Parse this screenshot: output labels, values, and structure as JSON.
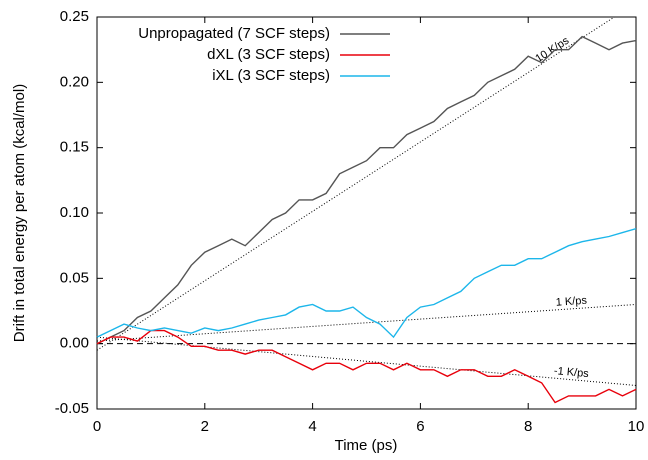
{
  "chart_data": {
    "type": "line",
    "xlabel": "Time (ps)",
    "ylabel": "Drift in total energy per atom (kcal/mol)",
    "x": [
      0,
      0.25,
      0.5,
      0.75,
      1,
      1.25,
      1.5,
      1.75,
      2,
      2.25,
      2.5,
      2.75,
      3,
      3.25,
      3.5,
      3.75,
      4,
      4.25,
      4.5,
      4.75,
      5,
      5.25,
      5.5,
      5.75,
      6,
      6.25,
      6.5,
      6.75,
      7,
      7.25,
      7.5,
      7.75,
      8,
      8.25,
      8.5,
      8.75,
      9,
      9.25,
      9.5,
      9.75,
      10
    ],
    "series": [
      {
        "name": "Unpropagated (7 SCF steps)",
        "color": "#555555",
        "values": [
          0,
          0.005,
          0.01,
          0.02,
          0.025,
          0.035,
          0.045,
          0.06,
          0.07,
          0.075,
          0.08,
          0.075,
          0.085,
          0.095,
          0.1,
          0.11,
          0.11,
          0.115,
          0.13,
          0.135,
          0.14,
          0.15,
          0.15,
          0.16,
          0.165,
          0.17,
          0.18,
          0.185,
          0.19,
          0.2,
          0.205,
          0.21,
          0.22,
          0.215,
          0.225,
          0.225,
          0.235,
          0.23,
          0.225,
          0.23,
          0.232
        ]
      },
      {
        "name": "dXL (3 SCF steps)",
        "color": "#e8000b",
        "values": [
          0,
          0.005,
          0.005,
          0.002,
          0.01,
          0.01,
          0.005,
          -0.002,
          -0.002,
          -0.005,
          -0.005,
          -0.008,
          -0.005,
          -0.005,
          -0.01,
          -0.015,
          -0.02,
          -0.015,
          -0.015,
          -0.02,
          -0.015,
          -0.015,
          -0.02,
          -0.015,
          -0.02,
          -0.02,
          -0.025,
          -0.02,
          -0.02,
          -0.025,
          -0.025,
          -0.02,
          -0.025,
          -0.03,
          -0.045,
          -0.04,
          -0.04,
          -0.04,
          -0.035,
          -0.04,
          -0.035
        ]
      },
      {
        "name": "iXL (3 SCF steps)",
        "color": "#1cb6ea",
        "values": [
          0.005,
          0.01,
          0.015,
          0.012,
          0.01,
          0.012,
          0.01,
          0.008,
          0.012,
          0.01,
          0.012,
          0.015,
          0.018,
          0.02,
          0.022,
          0.028,
          0.03,
          0.025,
          0.025,
          0.028,
          0.02,
          0.015,
          0.005,
          0.02,
          0.028,
          0.03,
          0.035,
          0.04,
          0.05,
          0.055,
          0.06,
          0.06,
          0.065,
          0.065,
          0.07,
          0.075,
          0.078,
          0.08,
          0.082,
          0.085,
          0.088
        ]
      }
    ],
    "reference_lines": [
      {
        "label": "10 K/ps",
        "x": [
          0,
          9.6
        ],
        "y": [
          -0.005,
          0.25
        ]
      },
      {
        "label": "1 K/ps",
        "x": [
          0,
          10
        ],
        "y": [
          0.002,
          0.03
        ]
      },
      {
        "label": "-1 K/ps",
        "x": [
          0,
          10
        ],
        "y": [
          0.005,
          -0.032
        ]
      }
    ],
    "zero_line": true,
    "xlim": [
      0,
      10
    ],
    "xticks": [
      0,
      2,
      4,
      6,
      8,
      10
    ],
    "ylim": [
      -0.05,
      0.25
    ],
    "yticks": [
      -0.05,
      {
        "value": 0,
        "label": "0.00"
      },
      0.05,
      {
        "value": 0.1,
        "label": "0.10"
      },
      0.15,
      {
        "value": 0.2,
        "label": "0.20"
      },
      0.25
    ],
    "legend": "top-left"
  }
}
